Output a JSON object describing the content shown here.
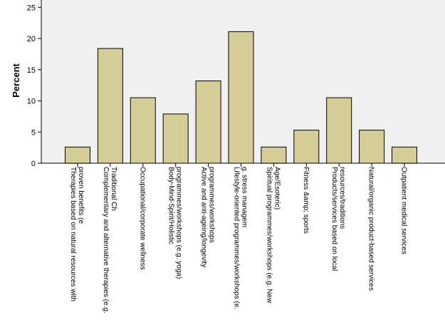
{
  "chart_data": {
    "type": "bar",
    "title": "",
    "xlabel": "",
    "ylabel": "Percent",
    "ylim": [
      0,
      26
    ],
    "yticks": [
      0,
      5,
      10,
      15,
      20,
      25
    ],
    "grid": false,
    "bar_color": "#d4cd97",
    "plot_bg": "#f0f0f0",
    "categories": [
      [
        "Therapies based on natural resources with",
        "proven benefits (e"
      ],
      [
        "Complementary and alternative therapies (e.g.",
        "Traditional Ch"
      ],
      [
        "Occupational/corporate wellness"
      ],
      [
        "Body-Mind-Spirit/Holistic",
        "programmes/workshops (e.g. yoga)"
      ],
      [
        "Active and anti-ageing/longevity",
        "programmes/workshops"
      ],
      [
        "Lifestyle-oriented programmes/workshops (e.",
        "g. stress managem"
      ],
      [
        "Spiritual programmes/workshops (e.g. New",
        "Age/Esoteric)"
      ],
      [
        "Fitness &amp; sports"
      ],
      [
        "Products/services based on local",
        "resources/traditions"
      ],
      [
        "Natural/organic product-based services"
      ],
      [
        "Outpatient medical services"
      ]
    ],
    "values": [
      2.6,
      18.4,
      10.5,
      7.9,
      13.2,
      21.1,
      2.6,
      5.3,
      10.5,
      5.3,
      2.6
    ]
  }
}
